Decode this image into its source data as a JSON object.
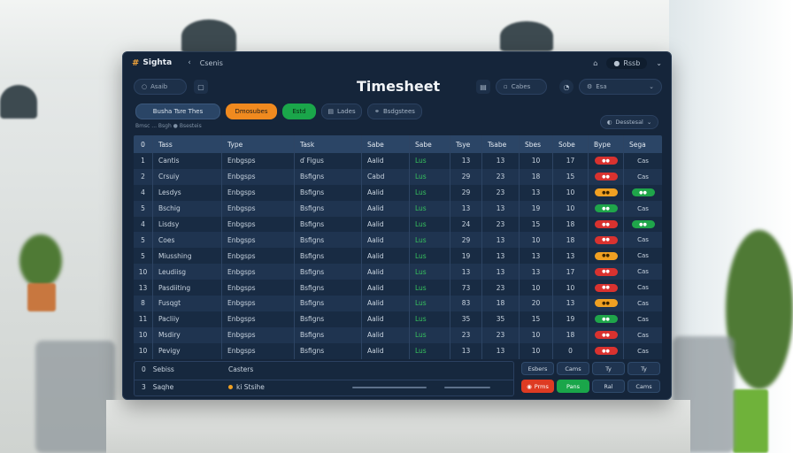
{
  "window": {
    "app_name": "Sighta",
    "logo_glyph": "#",
    "back_glyph": "‹",
    "breadcrumb": "Csenis",
    "user_name": "Rssb",
    "title": "Timesheet"
  },
  "toolbar": {
    "search_placeholder": "Asaib",
    "field1": "Cabes",
    "field2": "Esa"
  },
  "actions": {
    "primary": "Busha Tsre Thes",
    "orange": "Dmosubes",
    "green": "Estd",
    "ghost1": "Lades",
    "ghost2": "Bsdgstees",
    "filter": "Desstesal"
  },
  "subtitle": "Bmsc   ...   Bsgh   ●  Bsesteis",
  "table": {
    "headers": [
      "0",
      "Tass",
      "Type",
      "Task",
      "Sabe",
      "Sabe",
      "Tsye",
      "Tsabe",
      "Sbes",
      "Sobe",
      "Bype",
      "Sega"
    ],
    "rows": [
      {
        "n": "1",
        "name": "Cantis",
        "type": "Enbgsps",
        "task": "ɗ Figus",
        "sabe": "Aalid",
        "status": "Lus",
        "a": "13",
        "b": "13",
        "c": "10",
        "d": "17",
        "badge": "red",
        "tag": "Cas"
      },
      {
        "n": "2",
        "name": "Crsuiy",
        "type": "Enbgsps",
        "task": "Bsfigns",
        "sabe": "Cabd",
        "status": "Lus",
        "a": "29",
        "b": "23",
        "c": "18",
        "d": "15",
        "badge": "red",
        "tag": "Cas"
      },
      {
        "n": "4",
        "name": "Lesdys",
        "type": "Enbgsps",
        "task": "Bsfigns",
        "sabe": "Aalid",
        "status": "Lus",
        "a": "29",
        "b": "23",
        "c": "13",
        "d": "10",
        "badge": "orange",
        "tag": "green"
      },
      {
        "n": "5",
        "name": "Bschig",
        "type": "Enbgsps",
        "task": "Bsfigns",
        "sabe": "Aalid",
        "status": "Lus",
        "a": "13",
        "b": "13",
        "c": "19",
        "d": "10",
        "badge": "green",
        "tag": "Cas"
      },
      {
        "n": "4",
        "name": "Lisdsy",
        "type": "Enbgsps",
        "task": "Bsfigns",
        "sabe": "Aalid",
        "status": "Lus",
        "a": "24",
        "b": "23",
        "c": "15",
        "d": "18",
        "badge": "red",
        "tag": "green"
      },
      {
        "n": "5",
        "name": "Coes",
        "type": "Enbgsps",
        "task": "Bsfigns",
        "sabe": "Aalid",
        "status": "Lus",
        "a": "29",
        "b": "13",
        "c": "10",
        "d": "18",
        "badge": "red",
        "tag": "Cas"
      },
      {
        "n": "5",
        "name": "Miusshing",
        "type": "Enbgsps",
        "task": "Bsfigns",
        "sabe": "Aalid",
        "status": "Lus",
        "a": "19",
        "b": "13",
        "c": "13",
        "d": "13",
        "badge": "orange",
        "tag": "Cas"
      },
      {
        "n": "10",
        "name": "Leudiisg",
        "type": "Enbgsps",
        "task": "Bsfigns",
        "sabe": "Aalid",
        "status": "Lus",
        "a": "13",
        "b": "13",
        "c": "13",
        "d": "17",
        "badge": "red",
        "tag": "Cas"
      },
      {
        "n": "13",
        "name": "Pasdiiting",
        "type": "Enbgsps",
        "task": "Bsfigns",
        "sabe": "Aalid",
        "status": "Lus",
        "a": "73",
        "b": "23",
        "c": "10",
        "d": "10",
        "badge": "red",
        "tag": "Cas"
      },
      {
        "n": "8",
        "name": "Fusqgt",
        "type": "Enbgsps",
        "task": "Bsfigns",
        "sabe": "Aalid",
        "status": "Lus",
        "a": "83",
        "b": "18",
        "c": "20",
        "d": "13",
        "badge": "orange",
        "tag": "Cas"
      },
      {
        "n": "11",
        "name": "Pacliiy",
        "type": "Enbgsps",
        "task": "Bsfigns",
        "sabe": "Aalid",
        "status": "Lus",
        "a": "35",
        "b": "35",
        "c": "15",
        "d": "19",
        "badge": "green",
        "tag": "Cas"
      },
      {
        "n": "10",
        "name": "Msdiry",
        "type": "Enbgsps",
        "task": "Bsfigns",
        "sabe": "Aalid",
        "status": "Lus",
        "a": "23",
        "b": "23",
        "c": "10",
        "d": "18",
        "badge": "red",
        "tag": "Cas"
      },
      {
        "n": "10",
        "name": "Pevigy",
        "type": "Enbgsps",
        "task": "Bsfigns",
        "sabe": "Aalid",
        "status": "Lus",
        "a": "13",
        "b": "13",
        "c": "10",
        "d": "0",
        "badge": "red",
        "tag": "Cas"
      }
    ]
  },
  "footer": {
    "row1_id": "0",
    "row1_label": "Sebiss",
    "row1_value": "Casters",
    "row2_id": "3",
    "row2_label": "Saqhe",
    "row2_value": "ki Stsihe",
    "btn_top": [
      "Esbers",
      "Cams",
      "Ty",
      "Ty"
    ],
    "btn_bottom": [
      "Prms",
      "Pans",
      "Ral",
      "Cams"
    ]
  },
  "colors": {
    "accent_orange": "#f08a1f",
    "accent_green": "#1aa64a",
    "accent_red": "#d9322f",
    "panel": "#15253a"
  }
}
